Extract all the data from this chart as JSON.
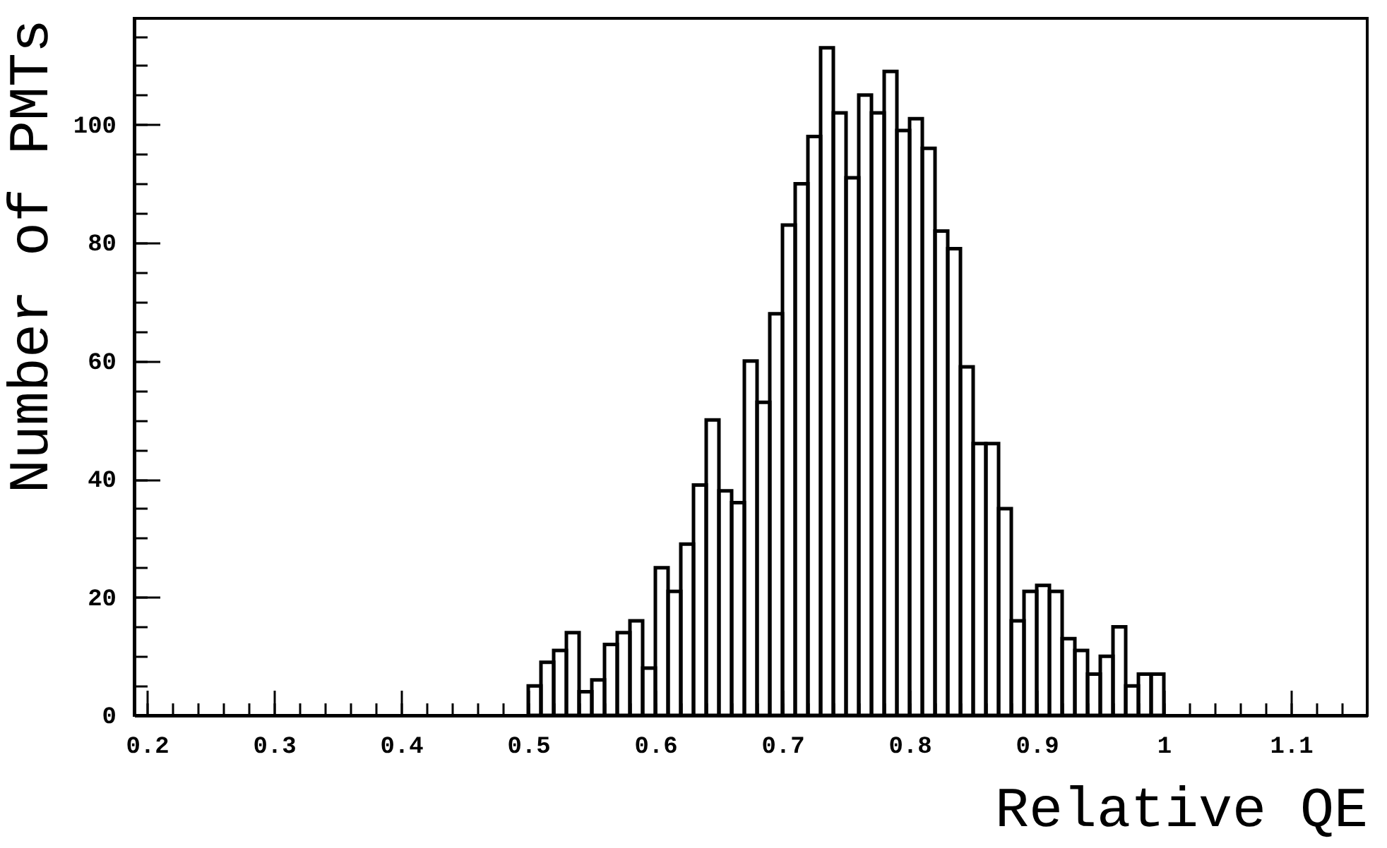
{
  "chart_data": {
    "type": "histogram",
    "xlabel": "Relative QE",
    "ylabel": "Number of PMTs",
    "bins": [
      0.5,
      0.51,
      0.52,
      0.53,
      0.54,
      0.55,
      0.56,
      0.57,
      0.58,
      0.59,
      0.6,
      0.61,
      0.62,
      0.63,
      0.64,
      0.65,
      0.66,
      0.67,
      0.68,
      0.69,
      0.7,
      0.71,
      0.72,
      0.73,
      0.74,
      0.75,
      0.76,
      0.77,
      0.78,
      0.79,
      0.8,
      0.81,
      0.82,
      0.83,
      0.84,
      0.85,
      0.86,
      0.87,
      0.88,
      0.89,
      0.9,
      0.91,
      0.92,
      0.93,
      0.94,
      0.95,
      0.96,
      0.97,
      0.98,
      0.99,
      1.0
    ],
    "values": [
      5,
      9,
      11,
      14,
      4,
      6,
      12,
      14,
      16,
      8,
      25,
      21,
      29,
      39,
      50,
      38,
      36,
      60,
      53,
      68,
      83,
      90,
      98,
      113,
      102,
      91,
      105,
      102,
      109,
      99,
      101,
      96,
      82,
      79,
      59,
      46,
      46,
      35,
      16,
      21,
      22,
      21,
      13,
      11,
      7,
      10,
      15,
      5,
      7,
      7
    ],
    "color": "#000000",
    "xlim": [
      0.19,
      1.16
    ],
    "ylim": [
      0,
      118
    ],
    "xticks": [
      0.2,
      {
        "value": 0.22,
        "label": null
      },
      {
        "value": 0.24,
        "label": null
      },
      {
        "value": 0.26,
        "label": null
      },
      {
        "value": 0.28,
        "label": null
      },
      0.3,
      {
        "value": 0.32,
        "label": null
      },
      {
        "value": 0.34,
        "label": null
      },
      {
        "value": 0.36,
        "label": null
      },
      {
        "value": 0.38,
        "label": null
      },
      0.4,
      {
        "value": 0.42,
        "label": null
      },
      {
        "value": 0.44,
        "label": null
      },
      {
        "value": 0.46,
        "label": null
      },
      {
        "value": 0.48,
        "label": null
      },
      0.5,
      {
        "value": 0.52,
        "label": null
      },
      {
        "value": 0.54,
        "label": null
      },
      {
        "value": 0.56,
        "label": null
      },
      {
        "value": 0.58,
        "label": null
      },
      0.6,
      {
        "value": 0.62,
        "label": null
      },
      {
        "value": 0.64,
        "label": null
      },
      {
        "value": 0.66,
        "label": null
      },
      {
        "value": 0.68,
        "label": null
      },
      0.7,
      {
        "value": 0.72,
        "label": null
      },
      {
        "value": 0.74,
        "label": null
      },
      {
        "value": 0.76,
        "label": null
      },
      {
        "value": 0.78,
        "label": null
      },
      0.8,
      {
        "value": 0.82,
        "label": null
      },
      {
        "value": 0.84,
        "label": null
      },
      {
        "value": 0.86,
        "label": null
      },
      {
        "value": 0.88,
        "label": null
      },
      0.9,
      {
        "value": 0.92,
        "label": null
      },
      {
        "value": 0.94,
        "label": null
      },
      {
        "value": 0.96,
        "label": null
      },
      {
        "value": 0.98,
        "label": null
      },
      1,
      {
        "value": 1.02,
        "label": null
      },
      {
        "value": 1.04,
        "label": null
      },
      {
        "value": 1.06,
        "label": null
      },
      {
        "value": 1.08,
        "label": null
      },
      1.1,
      {
        "value": 1.12,
        "label": null
      },
      {
        "value": 1.14,
        "label": null
      }
    ],
    "yticks": [
      0,
      {
        "value": 5,
        "label": null
      },
      {
        "value": 10,
        "label": null
      },
      {
        "value": 15,
        "label": null
      },
      20,
      {
        "value": 25,
        "label": null
      },
      {
        "value": 30,
        "label": null
      },
      {
        "value": 35,
        "label": null
      },
      40,
      {
        "value": 45,
        "label": null
      },
      {
        "value": 50,
        "label": null
      },
      {
        "value": 55,
        "label": null
      },
      60,
      {
        "value": 65,
        "label": null
      },
      {
        "value": 70,
        "label": null
      },
      {
        "value": 75,
        "label": null
      },
      80,
      {
        "value": 85,
        "label": null
      },
      {
        "value": 90,
        "label": null
      },
      {
        "value": 95,
        "label": null
      },
      100,
      {
        "value": 105,
        "label": null
      },
      {
        "value": 110,
        "label": null
      },
      {
        "value": 115,
        "label": null
      }
    ],
    "grid": false
  }
}
